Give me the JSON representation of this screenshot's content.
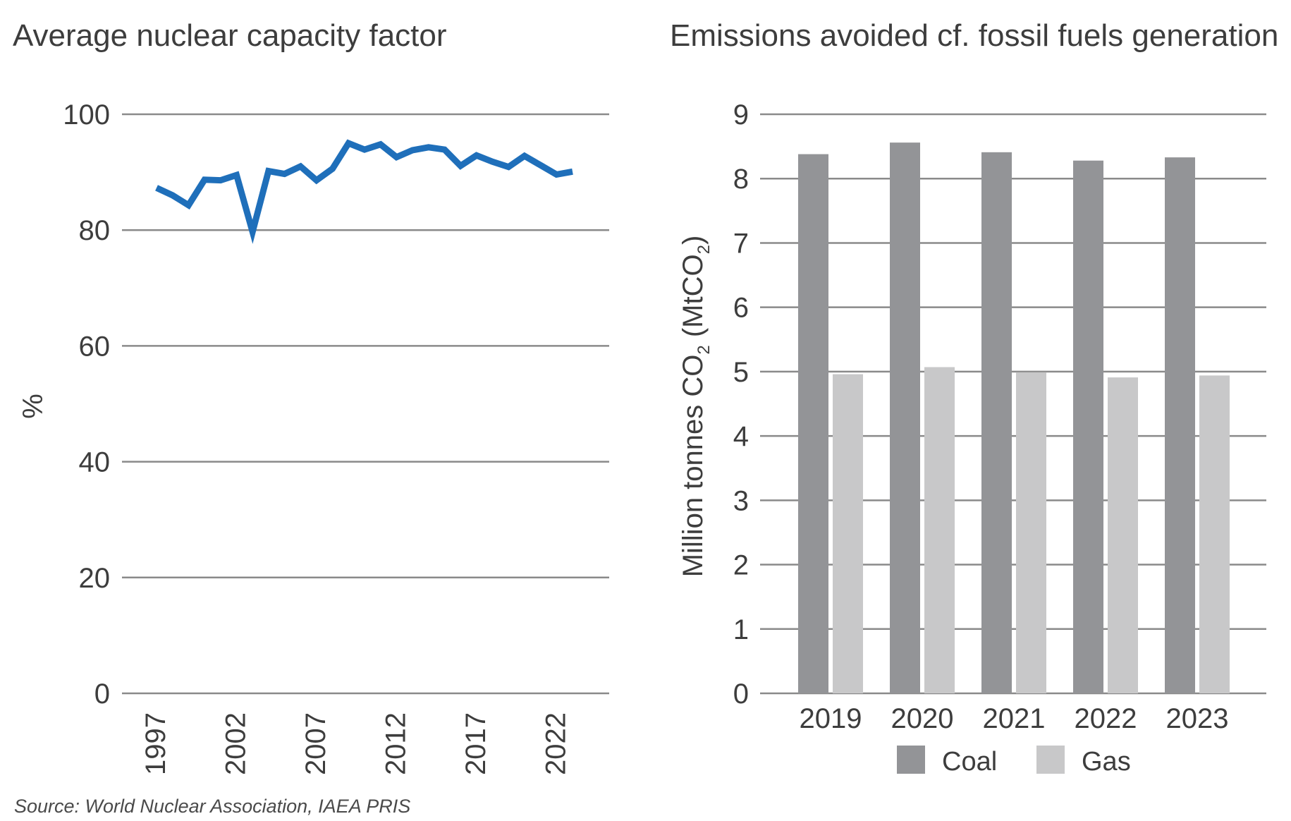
{
  "source": "Source: World Nuclear Association, IAEA PRIS",
  "chart_data": [
    {
      "type": "line",
      "title": "Average nuclear capacity factor",
      "xlabel": "",
      "ylabel": "%",
      "ylim": [
        0,
        100
      ],
      "yticks": [
        0,
        20,
        40,
        60,
        80,
        100
      ],
      "xticks": [
        1997,
        2002,
        2007,
        2012,
        2017,
        2022
      ],
      "grid": true,
      "color": "#1f6fba",
      "series": [
        {
          "x": [
            1997,
            1998,
            1999,
            2000,
            2001,
            2002,
            2003,
            2004,
            2005,
            2006,
            2007,
            2008,
            2009,
            2010,
            2011,
            2012,
            2013,
            2014,
            2015,
            2016,
            2017,
            2018,
            2019,
            2020,
            2021,
            2022,
            2023
          ],
          "values": [
            87.3,
            86.0,
            84.3,
            88.7,
            88.6,
            89.5,
            79.7,
            90.2,
            89.7,
            91.0,
            88.6,
            90.6,
            95.0,
            93.9,
            94.8,
            92.6,
            93.8,
            94.3,
            93.9,
            91.1,
            92.9,
            91.8,
            90.9,
            92.8,
            91.2,
            89.6,
            90.1
          ]
        }
      ]
    },
    {
      "type": "bar",
      "title": "Emissions avoided cf. fossil fuels generation",
      "xlabel": "",
      "ylabel": "Million tonnes CO2 (MtCO2)",
      "ylabel_parts": [
        "Million tonnes CO",
        "2",
        " (MtCO",
        "2",
        ")"
      ],
      "ylim": [
        0,
        9
      ],
      "yticks": [
        0,
        1,
        2,
        3,
        4,
        5,
        6,
        7,
        8,
        9
      ],
      "grid": true,
      "legend_position": "bottom",
      "categories": [
        "2019",
        "2020",
        "2021",
        "2022",
        "2023"
      ],
      "series": [
        {
          "name": "Coal",
          "color": "#939497",
          "values": [
            8.38,
            8.56,
            8.41,
            8.28,
            8.33
          ]
        },
        {
          "name": "Gas",
          "color": "#c8c8c9",
          "values": [
            4.96,
            5.07,
            4.99,
            4.91,
            4.94
          ]
        }
      ]
    }
  ]
}
